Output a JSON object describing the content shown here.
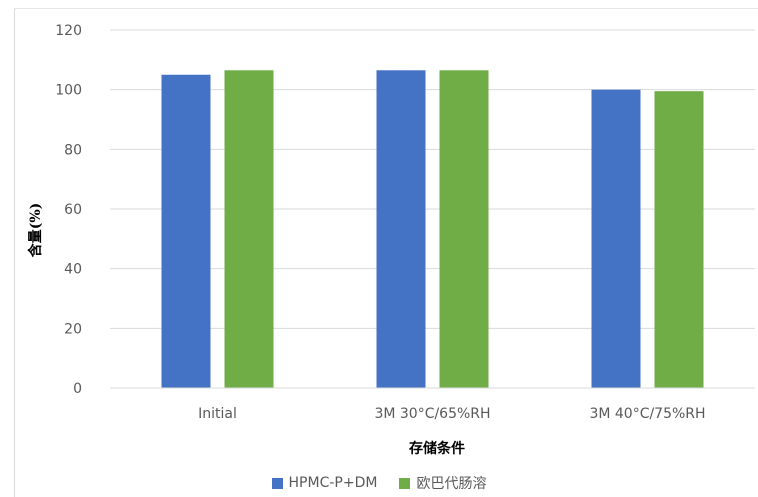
{
  "chart_data": {
    "type": "bar",
    "title": "",
    "xlabel": "存储条件",
    "ylabel": "含量(%)",
    "categories": [
      "Initial",
      "3M 30°C/65%RH",
      "3M 40°C/75%RH"
    ],
    "series": [
      {
        "name": "HPMC-P+DM",
        "color": "#4472C4",
        "values": [
          105,
          106.5,
          100
        ]
      },
      {
        "name": "欧巴代肠溶",
        "color": "#70AD47",
        "values": [
          106.5,
          106.5,
          99.5
        ]
      }
    ],
    "ylim": [
      0,
      120
    ],
    "yticks": [
      0,
      20,
      40,
      60,
      80,
      100,
      120
    ],
    "grid": true,
    "legend_position": "bottom",
    "gridline_color": "#d9d9d9"
  }
}
